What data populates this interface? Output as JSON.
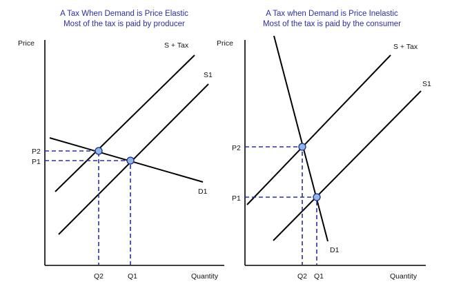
{
  "panels": [
    {
      "title_line1": "A Tax When Demand is Price Elastic",
      "title_line2": "Most of the tax is paid by producer",
      "y_axis_label": "Price",
      "x_axis_label": "Quantity",
      "supply_tax_label": "S + Tax",
      "supply_label": "S1",
      "demand_label": "D1",
      "price_labels": [
        "P2",
        "P1"
      ],
      "quantity_labels": [
        "Q2",
        "Q1"
      ]
    },
    {
      "title_line1": "A Tax when Demand is Price Inelastic",
      "title_line2": "Most of the tax is paid by the consumer",
      "y_axis_label": "Price",
      "x_axis_label": "Quantity",
      "supply_tax_label": "S + Tax",
      "supply_label": "S1",
      "demand_label": "D1",
      "price_labels": [
        "P2",
        "P1"
      ],
      "quantity_labels": [
        "Q2",
        "Q1"
      ]
    }
  ],
  "colors": {
    "title": "#2b2fa0",
    "guide_lines": "#2b2f9c",
    "point_fill": "#8fb8e8",
    "point_stroke": "#1e2a80",
    "curves": "#000000"
  }
}
